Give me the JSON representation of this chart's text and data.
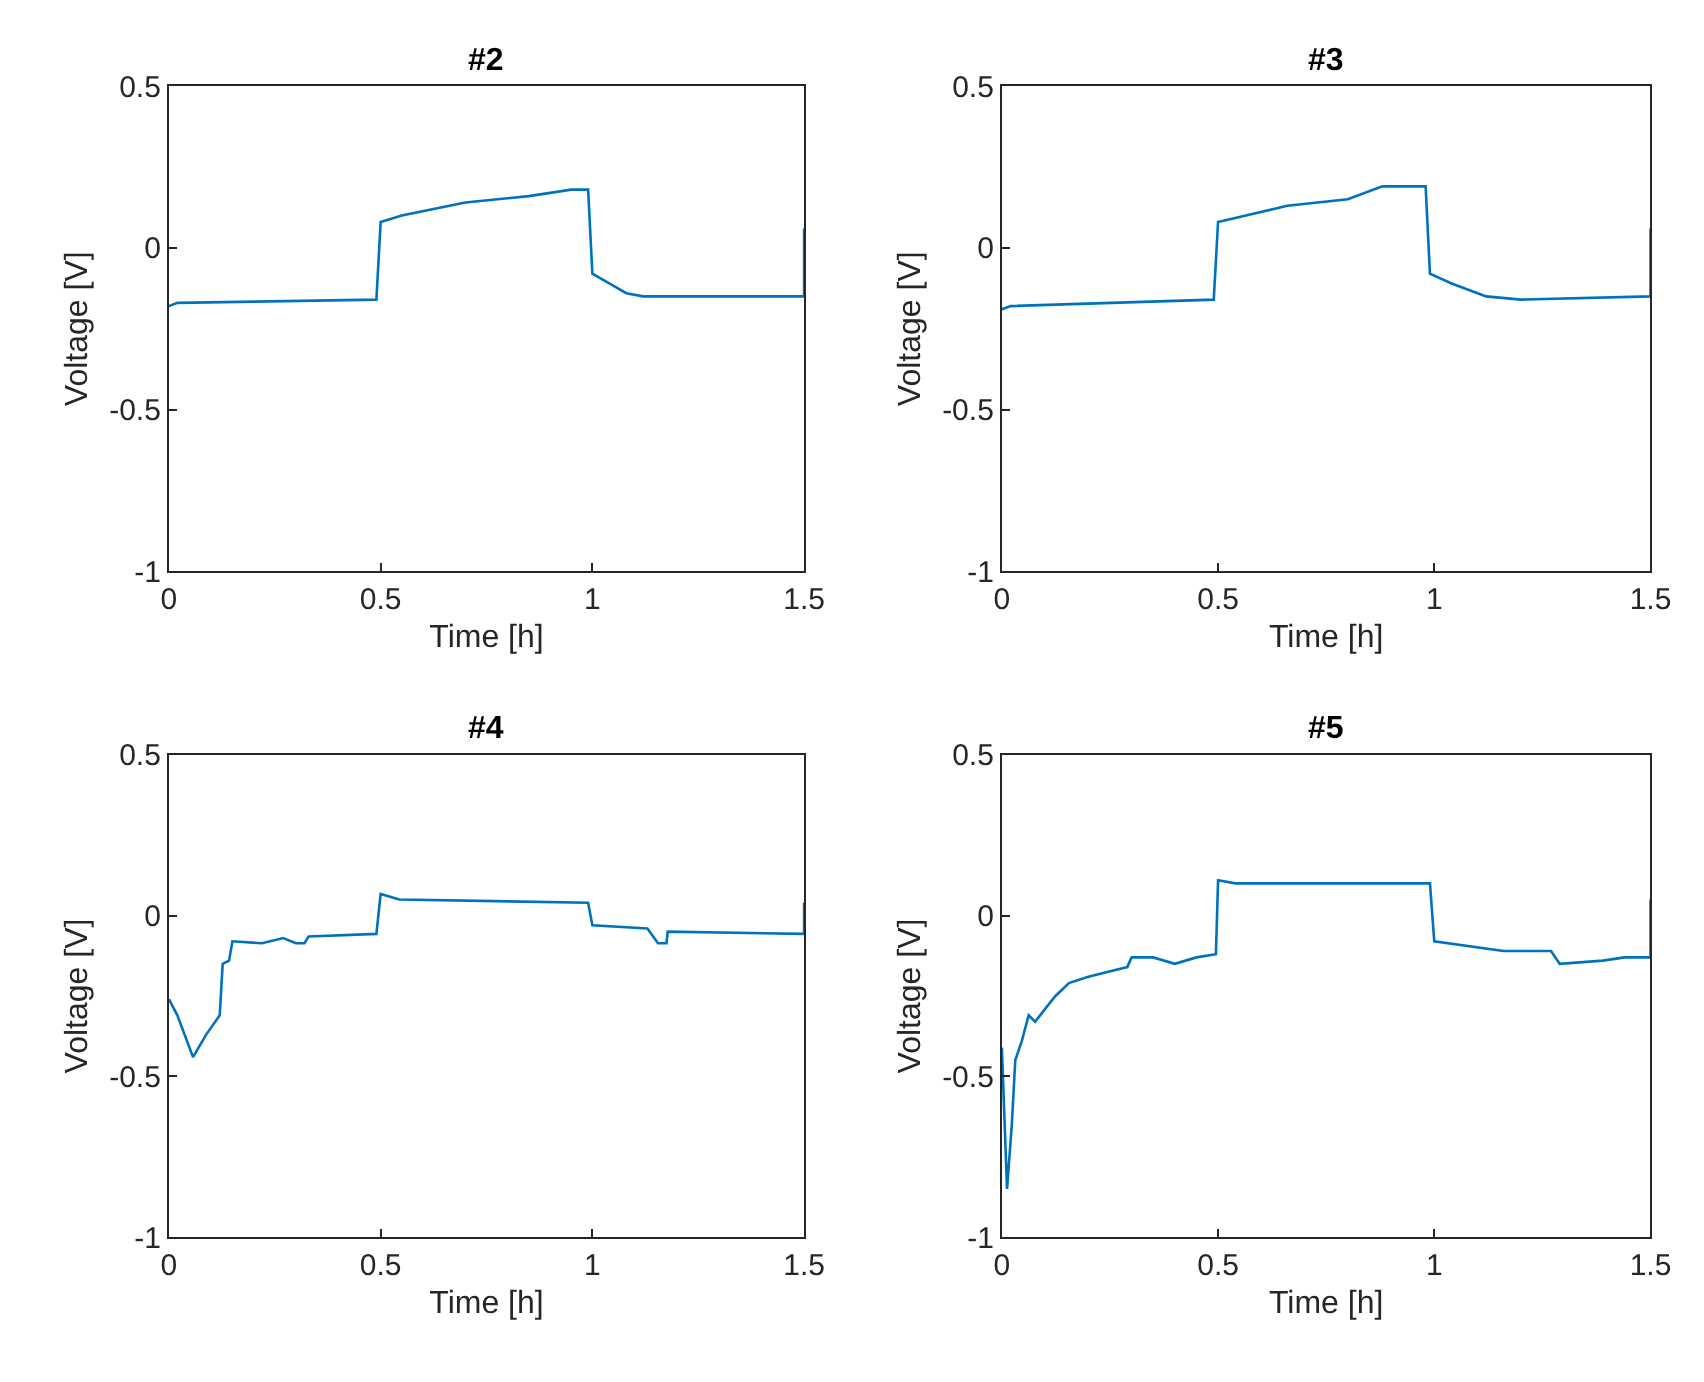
{
  "chart_data": [
    {
      "type": "line",
      "title": "#2",
      "xlabel": "Time [h]",
      "ylabel": "Voltage [V]",
      "xlim": [
        0,
        1.5
      ],
      "ylim": [
        -1,
        0.5
      ],
      "xticks": [
        0,
        0.5,
        1,
        1.5
      ],
      "yticks": [
        -1,
        -0.5,
        0,
        0.5
      ],
      "series": [
        {
          "color": "#0072bd",
          "x": [
            0,
            0.02,
            0.49,
            0.5,
            0.55,
            0.7,
            0.85,
            0.95,
            0.99,
            1.0,
            1.04,
            1.08,
            1.12,
            1.3,
            1.5,
            1.5
          ],
          "values": [
            -0.18,
            -0.17,
            -0.16,
            0.08,
            0.1,
            0.14,
            0.16,
            0.18,
            0.18,
            -0.08,
            -0.11,
            -0.14,
            -0.15,
            -0.15,
            -0.15,
            0.06
          ]
        }
      ]
    },
    {
      "type": "line",
      "title": "#3",
      "xlabel": "Time [h]",
      "ylabel": "Voltage [V]",
      "xlim": [
        0,
        1.5
      ],
      "ylim": [
        -1,
        0.5
      ],
      "xticks": [
        0,
        0.5,
        1,
        1.5
      ],
      "yticks": [
        -1,
        -0.5,
        0,
        0.5
      ],
      "series": [
        {
          "color": "#0072bd",
          "x": [
            0,
            0.02,
            0.49,
            0.5,
            0.66,
            0.8,
            0.88,
            0.98,
            0.99,
            1.04,
            1.12,
            1.2,
            1.5,
            1.5
          ],
          "values": [
            -0.19,
            -0.18,
            -0.16,
            0.08,
            0.13,
            0.15,
            0.19,
            0.19,
            -0.08,
            -0.11,
            -0.15,
            -0.16,
            -0.15,
            0.06
          ]
        }
      ]
    },
    {
      "type": "line",
      "title": "#4",
      "xlabel": "Time [h]",
      "ylabel": "Voltage [V]",
      "xlim": [
        0,
        1.5
      ],
      "ylim": [
        -1,
        0.5
      ],
      "xticks": [
        0,
        0.5,
        1,
        1.5
      ],
      "yticks": [
        -1,
        -0.5,
        0,
        0.5
      ],
      "series": [
        {
          "color": "#0072bd",
          "x": [
            0,
            0.02,
            0.057,
            0.088,
            0.12,
            0.127,
            0.142,
            0.15,
            0.22,
            0.27,
            0.3,
            0.32,
            0.33,
            0.49,
            0.5,
            0.544,
            0.99,
            1.0,
            1.13,
            1.155,
            1.175,
            1.178,
            1.5,
            1.5
          ],
          "values": [
            -0.26,
            -0.31,
            -0.44,
            -0.37,
            -0.31,
            -0.15,
            -0.14,
            -0.08,
            -0.086,
            -0.07,
            -0.086,
            -0.086,
            -0.065,
            -0.057,
            0.067,
            0.05,
            0.04,
            -0.03,
            -0.04,
            -0.086,
            -0.086,
            -0.05,
            -0.057,
            0.04
          ]
        }
      ]
    },
    {
      "type": "line",
      "title": "#5",
      "xlabel": "Time [h]",
      "ylabel": "Voltage [V]",
      "xlim": [
        0,
        1.5
      ],
      "ylim": [
        -1,
        0.5
      ],
      "xticks": [
        0,
        0.5,
        1,
        1.5
      ],
      "yticks": [
        -1,
        -0.5,
        0,
        0.5
      ],
      "series": [
        {
          "color": "#0072bd",
          "x": [
            0,
            0.012,
            0.023,
            0.031,
            0.046,
            0.062,
            0.077,
            0.1,
            0.124,
            0.155,
            0.2,
            0.26,
            0.29,
            0.3,
            0.35,
            0.4,
            0.45,
            0.495,
            0.5,
            0.54,
            0.99,
            1.0,
            1.16,
            1.27,
            1.29,
            1.39,
            1.44,
            1.5,
            1.5
          ],
          "values": [
            -0.41,
            -0.85,
            -0.65,
            -0.45,
            -0.39,
            -0.31,
            -0.33,
            -0.29,
            -0.25,
            -0.21,
            -0.19,
            -0.17,
            -0.16,
            -0.13,
            -0.13,
            -0.15,
            -0.13,
            -0.12,
            0.11,
            0.1,
            0.1,
            -0.08,
            -0.11,
            -0.11,
            -0.15,
            -0.14,
            -0.13,
            -0.13,
            0.05
          ]
        }
      ]
    }
  ]
}
